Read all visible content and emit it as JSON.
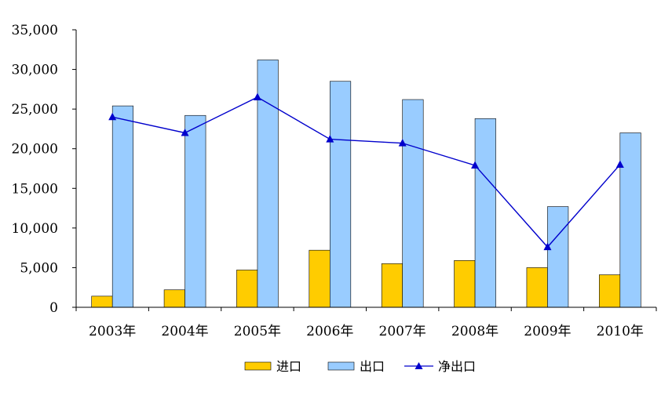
{
  "chart_data": {
    "type": "bar",
    "categories": [
      "2003年",
      "2004年",
      "2005年",
      "2006年",
      "2007年",
      "2008年",
      "2009年",
      "2010年"
    ],
    "series": [
      {
        "name": "进口",
        "kind": "bar",
        "color": "#FFCC00",
        "values": [
          1400,
          2200,
          4700,
          7200,
          5500,
          5900,
          5000,
          4100
        ]
      },
      {
        "name": "出口",
        "kind": "bar",
        "color": "#99CCFF",
        "values": [
          25400,
          24200,
          31200,
          28500,
          26200,
          23800,
          12700,
          22000
        ]
      },
      {
        "name": "净出口",
        "kind": "line",
        "color": "#0000CC",
        "marker": "triangle",
        "values": [
          24000,
          22000,
          26500,
          21200,
          20700,
          17900,
          7600,
          18000
        ]
      }
    ],
    "ylim": [
      0,
      35000
    ],
    "yticks": [
      "0",
      "5,000",
      "10,000",
      "15,000",
      "20,000",
      "25,000",
      "30,000",
      "35,000"
    ],
    "ytick_values": [
      0,
      5000,
      10000,
      15000,
      20000,
      25000,
      30000,
      35000
    ],
    "grid": false,
    "legend_position": "bottom"
  }
}
